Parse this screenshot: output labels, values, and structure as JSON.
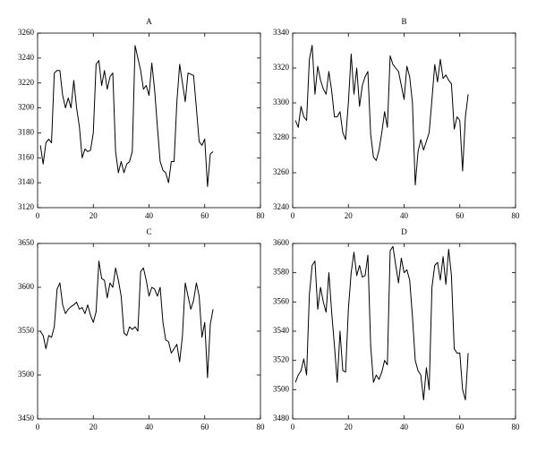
{
  "chart_data": [
    {
      "type": "line",
      "title": "A",
      "x": [
        1,
        2,
        3,
        4,
        5,
        6,
        7,
        8,
        9,
        10,
        11,
        12,
        13,
        14,
        15,
        16,
        17,
        18,
        19,
        20,
        21,
        22,
        23,
        24,
        25,
        26,
        27,
        28,
        29,
        30,
        31,
        32,
        33,
        34,
        35,
        36,
        37,
        38,
        39,
        40,
        41,
        42,
        43,
        44,
        45,
        46,
        47,
        48,
        49,
        50,
        51,
        52,
        53,
        54,
        55,
        56,
        57,
        58,
        59,
        60,
        61,
        62,
        63
      ],
      "values": [
        3170,
        3155,
        3172,
        3175,
        3172,
        3228,
        3230,
        3230,
        3210,
        3200,
        3208,
        3200,
        3222,
        3200,
        3185,
        3160,
        3167,
        3165,
        3166,
        3180,
        3235,
        3238,
        3218,
        3230,
        3215,
        3225,
        3228,
        3165,
        3148,
        3157,
        3148,
        3155,
        3157,
        3165,
        3250,
        3240,
        3230,
        3215,
        3218,
        3210,
        3236,
        3215,
        3185,
        3157,
        3150,
        3148,
        3140,
        3157,
        3157,
        3205,
        3235,
        3220,
        3205,
        3228,
        3227,
        3226,
        3200,
        3173,
        3170,
        3175,
        3137,
        3163,
        3165
      ],
      "color": "#000000",
      "xlim": [
        0,
        80
      ],
      "xticks": [
        0,
        20,
        40,
        60,
        80
      ],
      "ylim": [
        3120,
        3260
      ],
      "yticks": [
        3120,
        3140,
        3160,
        3180,
        3200,
        3220,
        3240,
        3260
      ]
    },
    {
      "type": "line",
      "title": "B",
      "x": [
        1,
        2,
        3,
        4,
        5,
        6,
        7,
        8,
        9,
        10,
        11,
        12,
        13,
        14,
        15,
        16,
        17,
        18,
        19,
        20,
        21,
        22,
        23,
        24,
        25,
        26,
        27,
        28,
        29,
        30,
        31,
        32,
        33,
        34,
        35,
        36,
        37,
        38,
        39,
        40,
        41,
        42,
        43,
        44,
        45,
        46,
        47,
        48,
        49,
        50,
        51,
        52,
        53,
        54,
        55,
        56,
        57,
        58,
        59,
        60,
        61,
        62,
        63
      ],
      "values": [
        3290,
        3286,
        3298,
        3292,
        3290,
        3325,
        3333,
        3305,
        3321,
        3313,
        3308,
        3305,
        3318,
        3307,
        3292,
        3292,
        3295,
        3283,
        3279,
        3300,
        3328,
        3305,
        3320,
        3298,
        3310,
        3315,
        3318,
        3282,
        3269,
        3267,
        3273,
        3283,
        3295,
        3286,
        3327,
        3322,
        3320,
        3318,
        3310,
        3302,
        3321,
        3315,
        3300,
        3253,
        3272,
        3279,
        3273,
        3278,
        3283,
        3302,
        3322,
        3312,
        3325,
        3314,
        3316,
        3313,
        3311,
        3285,
        3292,
        3290,
        3261,
        3292,
        3305
      ],
      "color": "#000000",
      "xlim": [
        0,
        80
      ],
      "xticks": [
        0,
        20,
        40,
        60,
        80
      ],
      "ylim": [
        3240,
        3340
      ],
      "yticks": [
        3240,
        3260,
        3280,
        3300,
        3320,
        3340
      ]
    },
    {
      "type": "line",
      "title": "C",
      "x": [
        1,
        2,
        3,
        4,
        5,
        6,
        7,
        8,
        9,
        10,
        11,
        12,
        13,
        14,
        15,
        16,
        17,
        18,
        19,
        20,
        21,
        22,
        23,
        24,
        25,
        26,
        27,
        28,
        29,
        30,
        31,
        32,
        33,
        34,
        35,
        36,
        37,
        38,
        39,
        40,
        41,
        42,
        43,
        44,
        45,
        46,
        47,
        48,
        49,
        50,
        51,
        52,
        53,
        54,
        55,
        56,
        57,
        58,
        59,
        60,
        61,
        62,
        63
      ],
      "values": [
        3550,
        3545,
        3530,
        3545,
        3543,
        3555,
        3598,
        3605,
        3580,
        3570,
        3575,
        3578,
        3580,
        3583,
        3575,
        3577,
        3570,
        3580,
        3568,
        3560,
        3572,
        3630,
        3610,
        3608,
        3588,
        3605,
        3600,
        3622,
        3608,
        3590,
        3548,
        3545,
        3555,
        3552,
        3555,
        3550,
        3618,
        3622,
        3608,
        3590,
        3600,
        3598,
        3590,
        3600,
        3560,
        3540,
        3538,
        3525,
        3530,
        3535,
        3515,
        3545,
        3605,
        3590,
        3575,
        3585,
        3605,
        3590,
        3543,
        3560,
        3497,
        3558,
        3575
      ],
      "color": "#000000",
      "xlim": [
        0,
        80
      ],
      "xticks": [
        0,
        20,
        40,
        60,
        80
      ],
      "ylim": [
        3450,
        3650
      ],
      "yticks": [
        3450,
        3500,
        3550,
        3600,
        3650
      ]
    },
    {
      "type": "line",
      "title": "D",
      "x": [
        1,
        2,
        3,
        4,
        5,
        6,
        7,
        8,
        9,
        10,
        11,
        12,
        13,
        14,
        15,
        16,
        17,
        18,
        19,
        20,
        21,
        22,
        23,
        24,
        25,
        26,
        27,
        28,
        29,
        30,
        31,
        32,
        33,
        34,
        35,
        36,
        37,
        38,
        39,
        40,
        41,
        42,
        43,
        44,
        45,
        46,
        47,
        48,
        49,
        50,
        51,
        52,
        53,
        54,
        55,
        56,
        57,
        58,
        59,
        60,
        61,
        62,
        63
      ],
      "values": [
        3505,
        3510,
        3513,
        3521,
        3510,
        3565,
        3585,
        3588,
        3555,
        3570,
        3560,
        3553,
        3580,
        3553,
        3530,
        3505,
        3540,
        3513,
        3512,
        3555,
        3580,
        3594,
        3578,
        3585,
        3577,
        3578,
        3592,
        3530,
        3505,
        3510,
        3507,
        3512,
        3520,
        3517,
        3595,
        3598,
        3585,
        3573,
        3590,
        3580,
        3582,
        3575,
        3550,
        3520,
        3513,
        3510,
        3493,
        3515,
        3500,
        3570,
        3585,
        3587,
        3575,
        3591,
        3572,
        3596,
        3578,
        3528,
        3525,
        3525,
        3500,
        3493,
        3525
      ],
      "color": "#000000",
      "xlim": [
        0,
        80
      ],
      "xticks": [
        0,
        20,
        40,
        60,
        80
      ],
      "ylim": [
        3480,
        3600
      ],
      "yticks": [
        3480,
        3500,
        3520,
        3540,
        3560,
        3580,
        3600
      ]
    }
  ]
}
